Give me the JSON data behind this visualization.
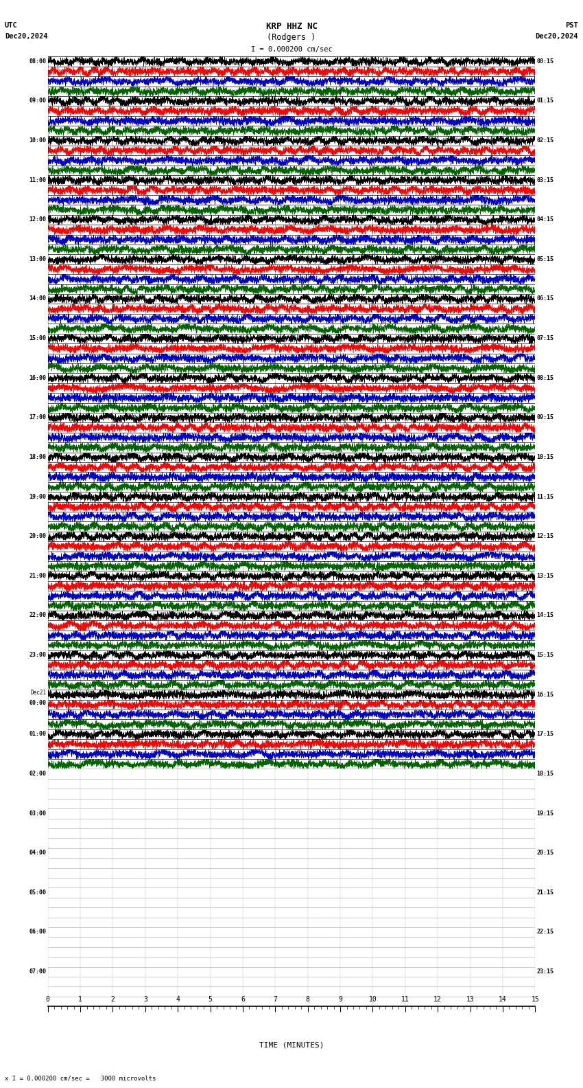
{
  "title_line1": "KRP HHZ NC",
  "title_line2": "(Rodgers )",
  "scale_label": "I = 0.000200 cm/sec",
  "left_label_top": "UTC",
  "left_label_date": "Dec20,2024",
  "right_label_top": "PST",
  "right_label_date": "Dec20,2024",
  "xlabel": "TIME (MINUTES)",
  "footer": "x I = 0.000200 cm/sec =   3000 microvolts",
  "utc_labels": [
    "08:00",
    "09:00",
    "10:00",
    "11:00",
    "12:00",
    "13:00",
    "14:00",
    "15:00",
    "16:00",
    "17:00",
    "18:00",
    "19:00",
    "20:00",
    "21:00",
    "22:00",
    "23:00",
    "Dec21\n00:00",
    "01:00",
    "02:00",
    "03:00",
    "04:00",
    "05:00",
    "06:00",
    "07:00"
  ],
  "pst_labels": [
    "00:15",
    "01:15",
    "02:15",
    "03:15",
    "04:15",
    "05:15",
    "06:15",
    "07:15",
    "08:15",
    "09:15",
    "10:15",
    "11:15",
    "12:15",
    "13:15",
    "14:15",
    "15:15",
    "16:15",
    "17:15",
    "18:15",
    "19:15",
    "20:15",
    "21:15",
    "22:15",
    "23:15"
  ],
  "n_rows": 24,
  "n_active_rows": 18,
  "trace_color_black": "#000000",
  "trace_color_red": "#ff0000",
  "trace_color_blue": "#0000cd",
  "trace_color_green": "#006400",
  "bg_color": "white",
  "fig_width": 8.5,
  "fig_height": 15.84,
  "n_sub_traces": 4,
  "n_points": 5400
}
